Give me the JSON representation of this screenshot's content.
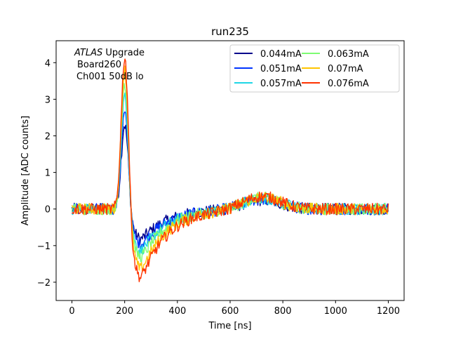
{
  "chart_data": {
    "type": "line",
    "title": "run235",
    "xlabel": "Time [ns]",
    "ylabel": "Amplitude [ADC counts]",
    "xlim": [
      -60,
      1260
    ],
    "ylim": [
      -2.5,
      4.6
    ],
    "xticks": [
      0,
      200,
      400,
      600,
      800,
      1000,
      1200
    ],
    "yticks": [
      -2,
      -1,
      0,
      1,
      2,
      3,
      4
    ],
    "annotation": {
      "atlas": "ATLAS",
      "upgrade": " Upgrade",
      "board": "Board260",
      "channel": "Ch001 50dB lo"
    },
    "legend": {
      "placement": "top-right",
      "columns": 2
    },
    "series": [
      {
        "name": "0.044mA",
        "color": "#00008b",
        "peak": 2.3,
        "trough": -0.9,
        "bump": 0.25
      },
      {
        "name": "0.051mA",
        "color": "#0033ff",
        "peak": 2.6,
        "trough": -1.05,
        "bump": 0.28
      },
      {
        "name": "0.057mA",
        "color": "#1fd6e6",
        "peak": 3.05,
        "trough": -1.25,
        "bump": 0.3
      },
      {
        "name": "0.063mA",
        "color": "#7dfc72",
        "peak": 3.45,
        "trough": -1.45,
        "bump": 0.32
      },
      {
        "name": "0.07mA",
        "color": "#ffc400",
        "peak": 3.8,
        "trough": -1.8,
        "bump": 0.34
      },
      {
        "name": "0.076mA",
        "color": "#ff3300",
        "peak": 4.15,
        "trough": -2.05,
        "bump": 0.36
      }
    ],
    "x_range": [
      0,
      1200
    ],
    "x_step": 3,
    "noise_amplitude": 0.16
  }
}
